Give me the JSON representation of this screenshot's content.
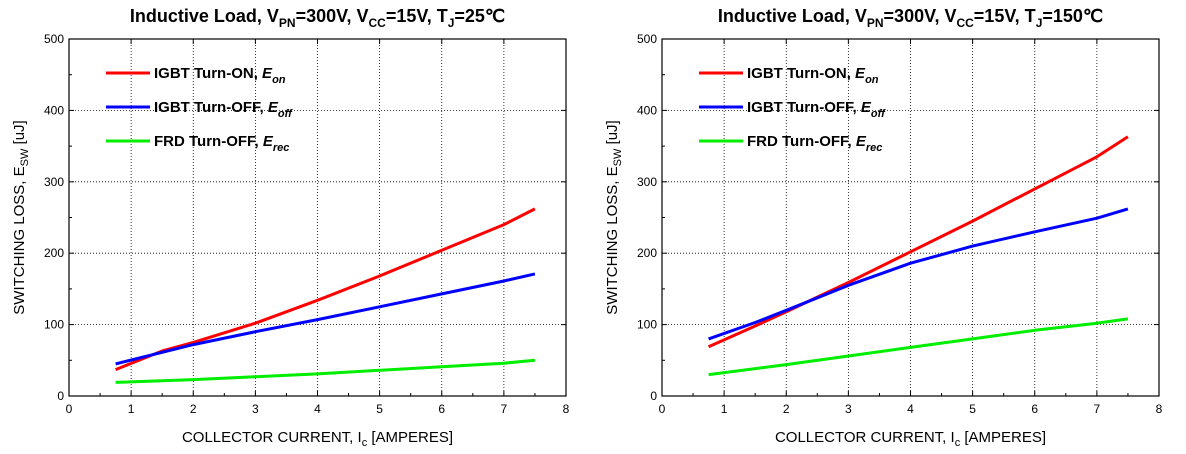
{
  "chart_data": [
    {
      "type": "line",
      "title": {
        "main": "Inductive Load, V",
        "sub1": "PN",
        "mid1": "=300V, V",
        "sub2": "CC",
        "mid2": "=15V, T",
        "sub3": "J",
        "end": "=25℃"
      },
      "xlabel": {
        "main": "COLLECTOR CURRENT, I",
        "sub": "c",
        "end": " [AMPERES]"
      },
      "ylabel": {
        "main": "SWITCHING LOSS, E",
        "sub": "SW",
        "end": " [uJ]"
      },
      "xlim": [
        0,
        8
      ],
      "ylim": [
        0,
        500
      ],
      "xticks": [
        "0",
        "1",
        "2",
        "3",
        "4",
        "5",
        "6",
        "7",
        "8"
      ],
      "yticks": [
        "0",
        "100",
        "200",
        "300",
        "400",
        "500"
      ],
      "grid": true,
      "legend_position": "top-left",
      "series": [
        {
          "name": "IGBT Turn-ON, ",
          "italic": "E",
          "sub": "on",
          "color": "#ff0000",
          "x": [
            0.75,
            1.5,
            2,
            3,
            4,
            5,
            6,
            7,
            7.5
          ],
          "y": [
            37,
            63,
            75,
            102,
            134,
            168,
            204,
            240,
            262
          ]
        },
        {
          "name": "IGBT Turn-OFF, ",
          "italic": "E",
          "sub": "off",
          "color": "#0000ff",
          "x": [
            0.75,
            2,
            3,
            4,
            5,
            6,
            7,
            7.5
          ],
          "y": [
            45,
            72,
            90,
            107,
            125,
            143,
            161,
            171
          ]
        },
        {
          "name": "FRD Turn-OFF, ",
          "italic": "E",
          "sub": "rec",
          "color": "#00ee00",
          "x": [
            0.75,
            2,
            3,
            4,
            5,
            6,
            7,
            7.5
          ],
          "y": [
            19,
            23,
            27,
            31,
            36,
            41,
            46,
            50
          ]
        }
      ]
    },
    {
      "type": "line",
      "title": {
        "main": "Inductive Load, V",
        "sub1": "PN",
        "mid1": "=300V, V",
        "sub2": "CC",
        "mid2": "=15V, T",
        "sub3": "J",
        "end": "=150℃"
      },
      "xlabel": {
        "main": "COLLECTOR CURRENT, I",
        "sub": "c",
        "end": " [AMPERES]"
      },
      "ylabel": {
        "main": "SWITCHING LOSS, E",
        "sub": "SW",
        "end": " [uJ]"
      },
      "xlim": [
        0,
        8
      ],
      "ylim": [
        0,
        500
      ],
      "xticks": [
        "0",
        "1",
        "2",
        "3",
        "4",
        "5",
        "6",
        "7",
        "8"
      ],
      "yticks": [
        "0",
        "100",
        "200",
        "300",
        "400",
        "500"
      ],
      "grid": true,
      "legend_position": "top-left",
      "series": [
        {
          "name": "IGBT Turn-ON, ",
          "italic": "E",
          "sub": "on",
          "color": "#ff0000",
          "x": [
            0.75,
            1.5,
            2,
            3,
            4,
            5,
            6,
            7,
            7.5
          ],
          "y": [
            69,
            98,
            118,
            159,
            202,
            245,
            290,
            335,
            363
          ]
        },
        {
          "name": "IGBT Turn-OFF, ",
          "italic": "E",
          "sub": "off",
          "color": "#0000ff",
          "x": [
            0.75,
            1.5,
            2,
            3,
            4,
            5,
            6,
            7,
            7.5
          ],
          "y": [
            80,
            103,
            120,
            155,
            186,
            210,
            230,
            249,
            262
          ]
        },
        {
          "name": "FRD Turn-OFF, ",
          "italic": "E",
          "sub": "rec",
          "color": "#00ee00",
          "x": [
            0.75,
            2,
            3,
            4,
            5,
            6,
            7,
            7.5
          ],
          "y": [
            30,
            44,
            56,
            68,
            80,
            92,
            102,
            108
          ]
        }
      ]
    }
  ]
}
